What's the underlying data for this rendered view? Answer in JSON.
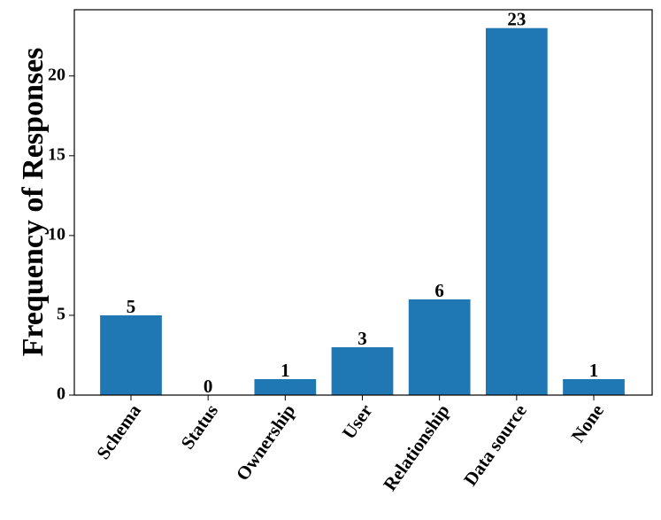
{
  "chart_data": {
    "type": "bar",
    "ylabel": "Frequency of Responses",
    "categories": [
      "Schema",
      "Status",
      "Ownership",
      "User",
      "Relationship",
      "Data source",
      "None"
    ],
    "values": [
      5,
      0,
      1,
      3,
      6,
      23,
      1
    ],
    "color": "#1f77b4",
    "ylim": [
      0,
      24.15
    ],
    "yticks": [
      0,
      5,
      10,
      15,
      20
    ],
    "data_labels": true
  }
}
